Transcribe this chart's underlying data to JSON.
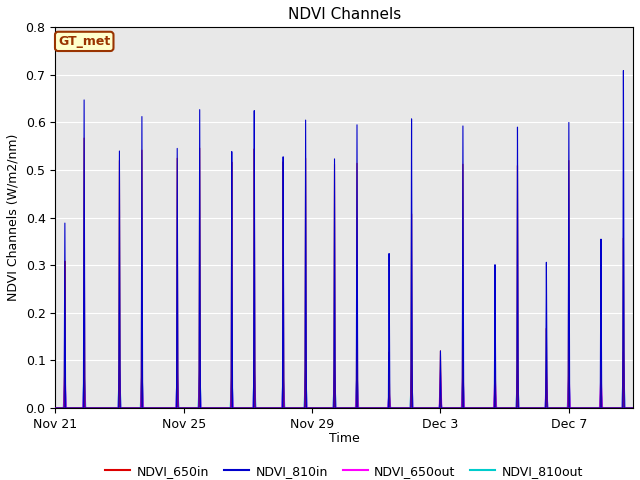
{
  "title": "NDVI Channels",
  "ylabel": "NDVI Channels (W/m2/nm)",
  "xlabel": "Time",
  "ylim": [
    0.0,
    0.8
  ],
  "bg_color": "#e8e8e8",
  "fig_color": "#ffffff",
  "legend_entries": [
    "NDVI_650in",
    "NDVI_810in",
    "NDVI_650out",
    "NDVI_810out"
  ],
  "annotation_text": "GT_met",
  "annotation_bg": "#ffffcc",
  "annotation_border": "#993300",
  "annotation_text_color": "#993300",
  "xtick_labels": [
    "Nov 21",
    "Nov 25",
    "Nov 29",
    "Dec 3",
    "Dec 7"
  ],
  "xtick_positions": [
    0,
    4,
    8,
    12,
    16
  ],
  "color_650in": "#dd0000",
  "color_810in": "#0000cc",
  "color_650out": "#ff00ff",
  "color_810out": "#00cccc",
  "spike_positions": [
    0.3,
    0.9,
    2.0,
    2.7,
    3.8,
    4.5,
    5.5,
    6.2,
    7.1,
    7.8,
    8.7,
    9.4,
    10.4,
    11.1,
    12.0,
    12.7,
    13.7,
    14.4,
    15.3,
    16.0,
    17.0,
    17.7
  ],
  "spike_810in": [
    0.4,
    0.65,
    0.54,
    0.62,
    0.55,
    0.64,
    0.55,
    0.63,
    0.53,
    0.61,
    0.53,
    0.61,
    0.33,
    0.61,
    0.12,
    0.6,
    0.31,
    0.6,
    0.31,
    0.6,
    0.37,
    0.73
  ],
  "spike_650in": [
    0.32,
    0.57,
    0.52,
    0.55,
    0.53,
    0.56,
    0.53,
    0.55,
    0.52,
    0.53,
    0.52,
    0.53,
    0.12,
    0.41,
    0.12,
    0.52,
    0.17,
    0.52,
    0.17,
    0.52,
    0.17,
    0.37
  ],
  "spike_650out": [
    0.09,
    0.08,
    0.09,
    0.09,
    0.09,
    0.09,
    0.08,
    0.09,
    0.08,
    0.09,
    0.09,
    0.09,
    0.04,
    0.09,
    0.08,
    0.09,
    0.08,
    0.09,
    0.08,
    0.09,
    0.08,
    0.12
  ],
  "spike_810out": [
    0.06,
    0.08,
    0.08,
    0.08,
    0.07,
    0.08,
    0.07,
    0.08,
    0.07,
    0.08,
    0.07,
    0.08,
    0.03,
    0.07,
    0.02,
    0.07,
    0.04,
    0.07,
    0.04,
    0.07,
    0.04,
    0.1
  ]
}
